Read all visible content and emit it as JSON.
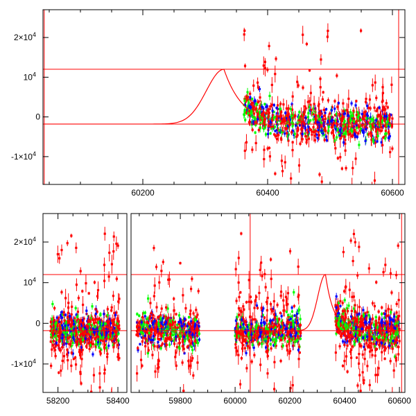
{
  "colors": {
    "model": "#ff0000",
    "series": [
      "#0000ff",
      "#00ff00",
      "#ff0000"
    ],
    "axis": "#000000"
  },
  "chart_data": [
    {
      "type": "scatter",
      "xlim": [
        60040,
        60620
      ],
      "ylim": [
        -17000,
        27000
      ],
      "x_ticks": [
        {
          "value": 60200,
          "label": "60200"
        },
        {
          "value": 60400,
          "label": "60400"
        },
        {
          "value": 60600,
          "label": "60600"
        }
      ],
      "y_ticks": [
        {
          "value": -10000,
          "base": "-1×10",
          "exp": "4"
        },
        {
          "value": 0,
          "base": "0",
          "exp": ""
        },
        {
          "value": 10000,
          "base": "10",
          "exp": "4"
        },
        {
          "value": 20000,
          "base": "2×10",
          "exp": "4"
        }
      ],
      "hlines": [
        12000,
        -1800
      ],
      "vlines": [
        60042,
        60610
      ],
      "model": {
        "baseline": -1800,
        "peak_x": 60330,
        "peak_y": 12000,
        "rise_width": 40,
        "fall_tau": 30,
        "x_start": 60042,
        "x_end": 60368
      }
    },
    {
      "type": "scatter",
      "segments": [
        {
          "xlim": [
            58150,
            58430
          ],
          "x_ticks": [
            {
              "value": 58200,
              "label": "58200"
            },
            {
              "value": 58400,
              "label": "58400"
            }
          ]
        },
        {
          "xlim": [
            59620,
            60620
          ],
          "x_ticks": [
            {
              "value": 59800,
              "label": "59800"
            },
            {
              "value": 60000,
              "label": "60000"
            },
            {
              "value": 60200,
              "label": "60200"
            },
            {
              "value": 60400,
              "label": "60400"
            },
            {
              "value": 60600,
              "label": "60600"
            }
          ]
        }
      ],
      "ylim": [
        -17000,
        27000
      ],
      "y_ticks": [
        {
          "value": -10000,
          "base": "-1×10",
          "exp": "4"
        },
        {
          "value": 0,
          "base": "0",
          "exp": ""
        },
        {
          "value": 10000,
          "base": "10",
          "exp": "4"
        },
        {
          "value": 20000,
          "base": "2×10",
          "exp": "4"
        }
      ],
      "hlines": [
        12000,
        -1800
      ],
      "vlines": [
        60055,
        60608
      ],
      "data_ranges": [
        [
          58175,
          58405
        ],
        [
          59640,
          59870
        ],
        [
          60000,
          60240
        ],
        [
          60365,
          60600
        ]
      ],
      "model": {
        "baseline": -1800,
        "peak_x": 60330,
        "peak_y": 12000,
        "rise_width": 40,
        "fall_tau": 30,
        "x_start": 60240,
        "x_end": 60370
      }
    }
  ]
}
